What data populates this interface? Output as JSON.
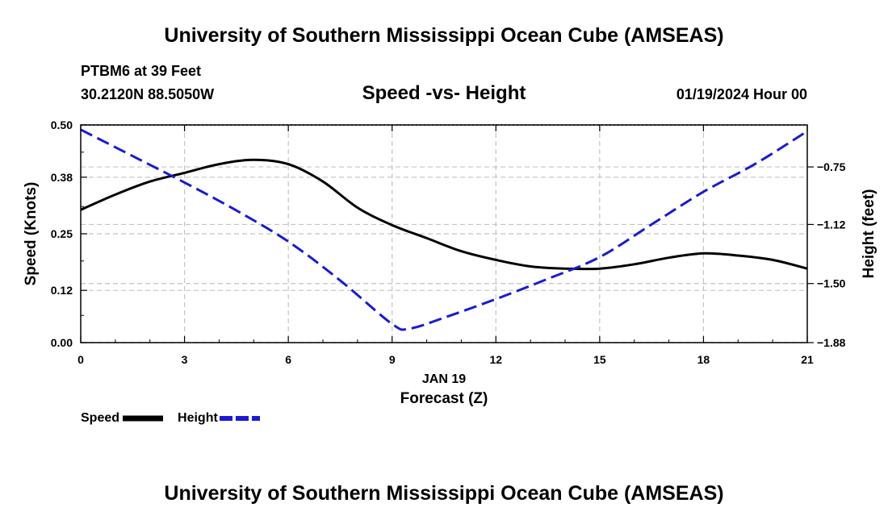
{
  "page_title": "University of Southern Mississippi Ocean Cube (AMSEAS)",
  "footer_title": "University of Southern Mississippi Ocean Cube (AMSEAS)",
  "station": {
    "name": "PTBM6 at 39 Feet",
    "coords": "30.2120N  88.5050W"
  },
  "datetime": "01/19/2024 Hour 00",
  "legend": [
    {
      "label": "Speed",
      "color": "#000000",
      "dash": "solid"
    },
    {
      "label": "Height",
      "color": "#1a1ad6",
      "dash": "dashed"
    }
  ],
  "chart_data": {
    "type": "line",
    "title": "Speed -vs- Height",
    "xlabel": "Forecast (Z)",
    "date_label": "JAN 19",
    "ylabel": "Speed (Knots)",
    "y2label": "Height (feet)",
    "xlim": [
      0,
      21
    ],
    "ylim": [
      0,
      0.5
    ],
    "y2lim": [
      -1.88,
      -0.48
    ],
    "x_ticks": [
      "0",
      "3",
      "6",
      "9",
      "12",
      "15",
      "18",
      "21"
    ],
    "y_ticks": [
      "0.00",
      "0.12",
      "0.25",
      "0.38",
      "0.50"
    ],
    "y2_ticks": [
      "-1.88",
      "-1.50",
      "-1.12",
      "-0.75"
    ],
    "grid": true,
    "series": [
      {
        "name": "Speed",
        "axis": "left",
        "color": "#000000",
        "x": [
          0,
          1,
          2,
          3,
          4,
          5,
          6,
          7,
          8,
          9,
          10,
          11,
          12,
          13,
          14,
          15,
          16,
          17,
          18,
          19,
          20,
          21
        ],
        "values": [
          0.305,
          0.34,
          0.37,
          0.39,
          0.41,
          0.42,
          0.41,
          0.37,
          0.31,
          0.27,
          0.24,
          0.21,
          0.19,
          0.175,
          0.17,
          0.17,
          0.18,
          0.195,
          0.205,
          0.2,
          0.19,
          0.17
        ]
      },
      {
        "name": "Height",
        "axis": "right",
        "color": "#1a1ad6",
        "x": [
          0,
          1.5,
          3,
          4.5,
          6,
          7.5,
          9,
          9.5,
          10.5,
          12,
          13.5,
          15,
          16.5,
          18,
          19.5,
          21
        ],
        "values": [
          -0.51,
          -0.68,
          -0.85,
          -1.03,
          -1.23,
          -1.48,
          -1.76,
          -1.79,
          -1.72,
          -1.6,
          -1.47,
          -1.33,
          -1.12,
          -0.91,
          -0.73,
          -0.52
        ]
      }
    ]
  }
}
